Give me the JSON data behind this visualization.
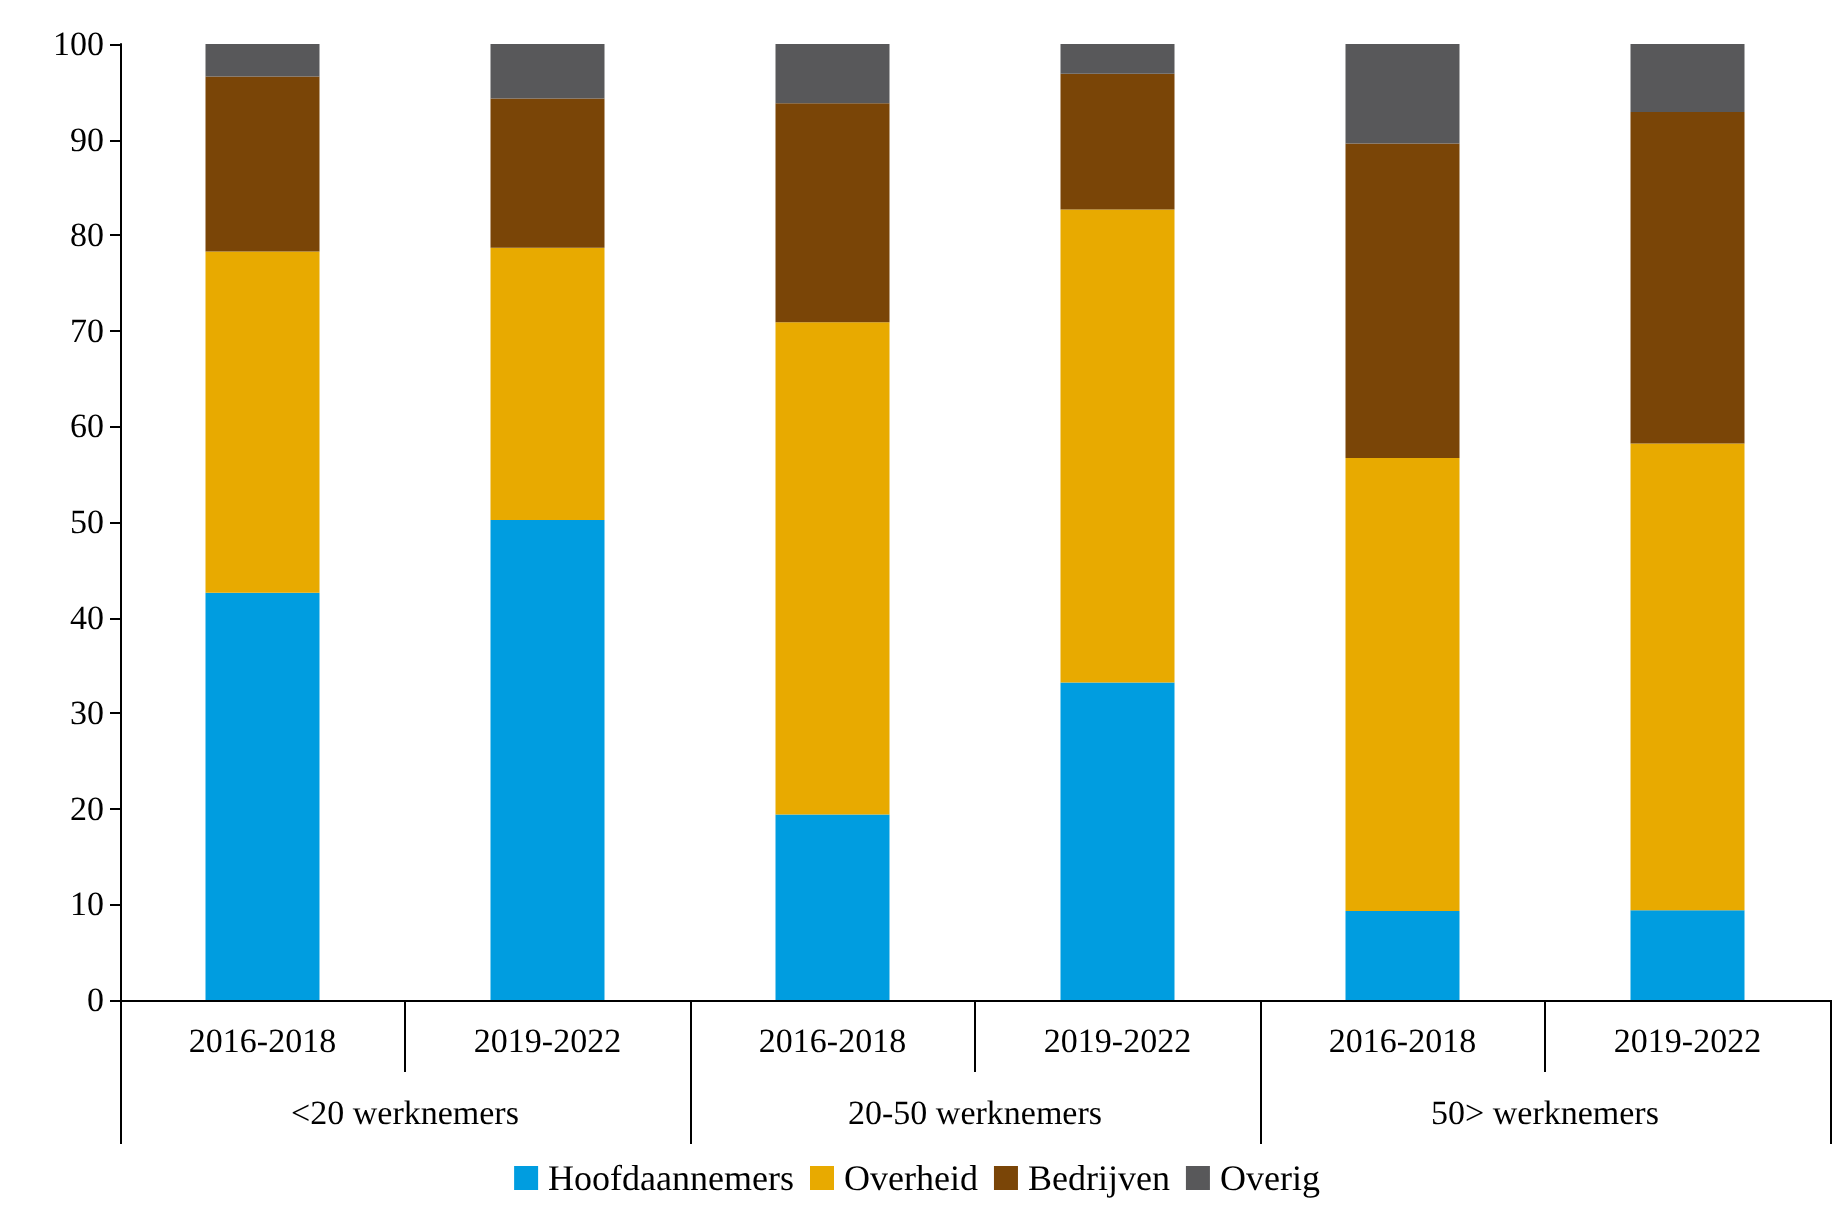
{
  "chart_data": {
    "type": "bar",
    "stacked": true,
    "categories": [
      "2016-2018",
      "2019-2022",
      "2016-2018",
      "2019-2022",
      "2016-2018",
      "2019-2022"
    ],
    "annotations": [
      "<20 werknemers",
      "20-50 werknemers",
      "50> werknemers"
    ],
    "series": [
      {
        "name": "Hoofdaannemers",
        "color": "#009de0",
        "values": [
          42.6,
          50.2,
          19.4,
          33.2,
          9.3,
          9.4
        ]
      },
      {
        "name": "Overheid",
        "color": "#e8aa00",
        "values": [
          35.7,
          28.5,
          51.5,
          49.5,
          47.4,
          48.8
        ]
      },
      {
        "name": "Bedrijven",
        "color": "#7a4507",
        "values": [
          18.3,
          15.6,
          22.9,
          14.2,
          32.9,
          34.7
        ]
      },
      {
        "name": "Overig",
        "color": "#58585a",
        "values": [
          3.4,
          5.7,
          6.2,
          3.1,
          10.4,
          7.1
        ]
      }
    ],
    "ylim": [
      0,
      100
    ],
    "yticks": [
      0,
      10,
      20,
      30,
      40,
      50,
      60,
      70,
      80,
      90,
      100
    ],
    "grid": false,
    "legend": "bottom"
  }
}
